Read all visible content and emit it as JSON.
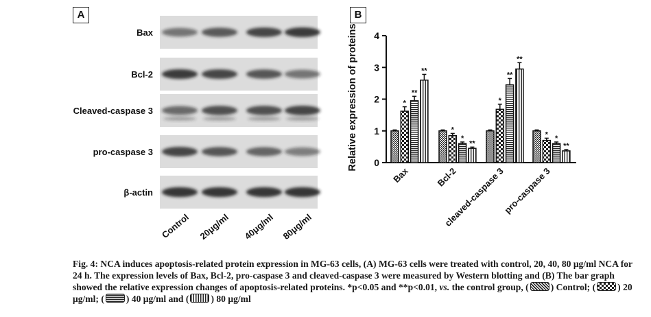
{
  "panel_a": {
    "label": "A",
    "rows": [
      "Bax",
      "Bcl-2",
      "Cleaved-caspase 3",
      "pro-caspase 3",
      "β-actin"
    ],
    "lanes": [
      "Control",
      "20μg/ml",
      "40μg/ml",
      "80μg/ml"
    ]
  },
  "panel_b": {
    "label": "B"
  },
  "chart_data": {
    "type": "bar",
    "title": "",
    "ylabel": "Relative expression of proteins",
    "xlabel": "",
    "categories": [
      "Bax",
      "Bcl-2",
      "cleaved-caspase 3",
      "pro-caspase 3"
    ],
    "ylim": [
      0,
      4
    ],
    "yticks": [
      0,
      1,
      2,
      3,
      4
    ],
    "series": [
      {
        "values": [
          1.0,
          1.0,
          1.0,
          1.0
        ],
        "errors": [
          0.03,
          0.03,
          0.03,
          0.03
        ],
        "marks": [
          "",
          "",
          "",
          ""
        ]
      },
      {
        "values": [
          1.62,
          0.85,
          1.68,
          0.7
        ],
        "errors": [
          0.14,
          0.07,
          0.16,
          0.07
        ],
        "marks": [
          "*",
          "*",
          "*",
          "*"
        ]
      },
      {
        "values": [
          1.95,
          0.6,
          2.45,
          0.6
        ],
        "errors": [
          0.14,
          0.05,
          0.2,
          0.05
        ],
        "marks": [
          "**",
          "*",
          "**",
          "*"
        ]
      },
      {
        "values": [
          2.6,
          0.45,
          2.95,
          0.37
        ],
        "errors": [
          0.18,
          0.04,
          0.2,
          0.04
        ],
        "marks": [
          "**",
          "**",
          "**",
          "**"
        ]
      }
    ],
    "grid": false,
    "legend": "none"
  },
  "caption": {
    "line1": "Fig. 4: NCA induces apoptosis-related protein expression in MG-63 cells, (A) MG-63 cells were treated with control, 20, 40, 80 μg/ml NCA for 24 h. The expression levels of Bax, Bcl-2, pro-caspase 3 and cleaved-caspase 3 were measured by Western blotting and (B) The bar graph showed the relative expression changes of apoptosis-related proteins. *p<0.05 and **p<0.01,",
    "vs": "vs.",
    "line2": "the control group,",
    "legend_control": "Control;",
    "legend_20": "20 μg/ml;",
    "legend_40": "40 μg/ml and",
    "legend_80": "80 μg/ml"
  }
}
